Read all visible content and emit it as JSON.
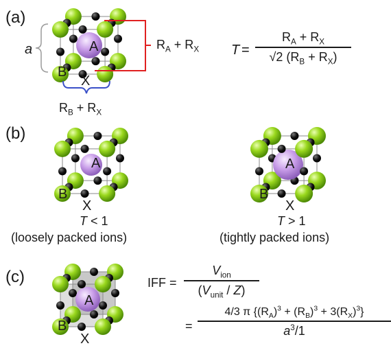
{
  "panels": {
    "a": {
      "label": "(a)",
      "lattice_param": "a",
      "ion_A": "A",
      "ion_B": "B",
      "ion_X": "X",
      "dim_vertical": "R_A + R_X",
      "dim_horizontal": "R_B + R_X",
      "formula_T": "T",
      "formula_num": "R_A + R_X",
      "formula_den": "√2 (R_B + R_X)"
    },
    "b": {
      "label": "(b)",
      "left": {
        "ion_A": "A",
        "ion_B": "B",
        "ion_X": "X",
        "condition": "T < 1",
        "caption": "(loosely packed ions)"
      },
      "right": {
        "ion_A": "A",
        "ion_B": "B",
        "ion_X": "X",
        "condition": "T > 1",
        "caption": "(tightly packed ions)"
      }
    },
    "c": {
      "label": "(c)",
      "ion_A": "A",
      "ion_B": "B",
      "ion_X": "X",
      "formula_lhs": "IFF =",
      "formula1_num": "V_ion",
      "formula1_den": "(V_unit / Z)",
      "formula2_num": "4/3 π {(R_A)^3 + (R_B)^3 + 3(R_X)^3}",
      "formula2_den": "a^3/1"
    }
  },
  "colors": {
    "B_sphere": "#8fd11a",
    "A_sphere": "#c69ce8",
    "X_sphere": "#111111",
    "bracket_red": "#e02020",
    "bracket_blue": "#3a50c8"
  }
}
